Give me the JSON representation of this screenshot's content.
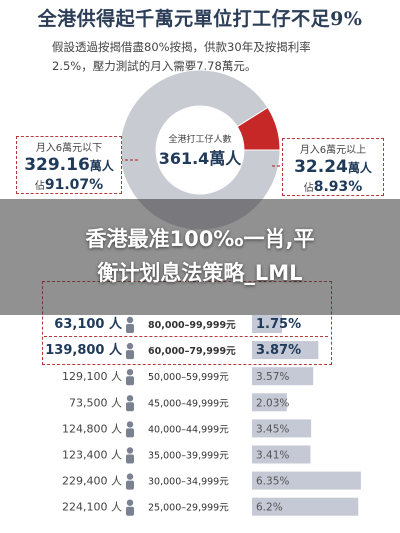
{
  "title": "全港供得起千萬元單位打工仔不足9%",
  "subtitle_lines": [
    "假設透過按揭借盡80%按揭，供款30年及按揭利率",
    "2.5%，壓力測試的月入需要7.78萬元。"
  ],
  "banner_lines": [
    "香港最准100‰一肖,平",
    "衡计划息法策略_LML"
  ],
  "left_box": {
    "label": "月入6萬元以下",
    "number": "329.16",
    "unit": "萬人",
    "pct_prefix": "佔",
    "pct": "91.07%"
  },
  "right_box": {
    "label": "月入6萬元以上",
    "number": "32.24",
    "unit": "萬人",
    "pct_prefix": "佔",
    "pct": "8.93%"
  },
  "center": {
    "label": "全港打工仔人數",
    "number": "361.4",
    "unit": "萬人"
  },
  "colors": {
    "donut_main": "#c9cbd2",
    "donut_accent": "#c62828",
    "bar": "#c5c9d6",
    "title": "#2c3e57",
    "box_border": "#b33a3a"
  },
  "chart_data": [
    {
      "type": "pie",
      "categories": [
        "月入6萬元以下",
        "月入6萬元以上"
      ],
      "values": [
        91.07,
        8.93
      ],
      "title": ""
    },
    {
      "type": "bar",
      "orientation": "horizontal",
      "categories": [
        "80,000–99,999元",
        "60,000–79,999元",
        "50,000–59,999元",
        "45,000–49,999元",
        "40,000–44,999元",
        "35,000–39,999元",
        "30,000–34,999元",
        "25,000–29,999元"
      ],
      "counts": [
        "63,100 人",
        "139,800 人",
        "129,100 人",
        "73,500 人",
        "124,800 人",
        "123,400 人",
        "229,400 人",
        "224,100 人"
      ],
      "values": [
        1.75,
        3.87,
        3.57,
        2.03,
        3.45,
        3.41,
        6.35,
        6.2
      ],
      "value_labels": [
        "1.75%",
        "3.87%",
        "3.57%",
        "2.03%",
        "3.45%",
        "3.41%",
        "6.35%",
        "6.2%"
      ],
      "highlighted": [
        true,
        true,
        false,
        false,
        false,
        false,
        false,
        false
      ],
      "xlim": [
        0,
        7
      ],
      "title": ""
    }
  ]
}
